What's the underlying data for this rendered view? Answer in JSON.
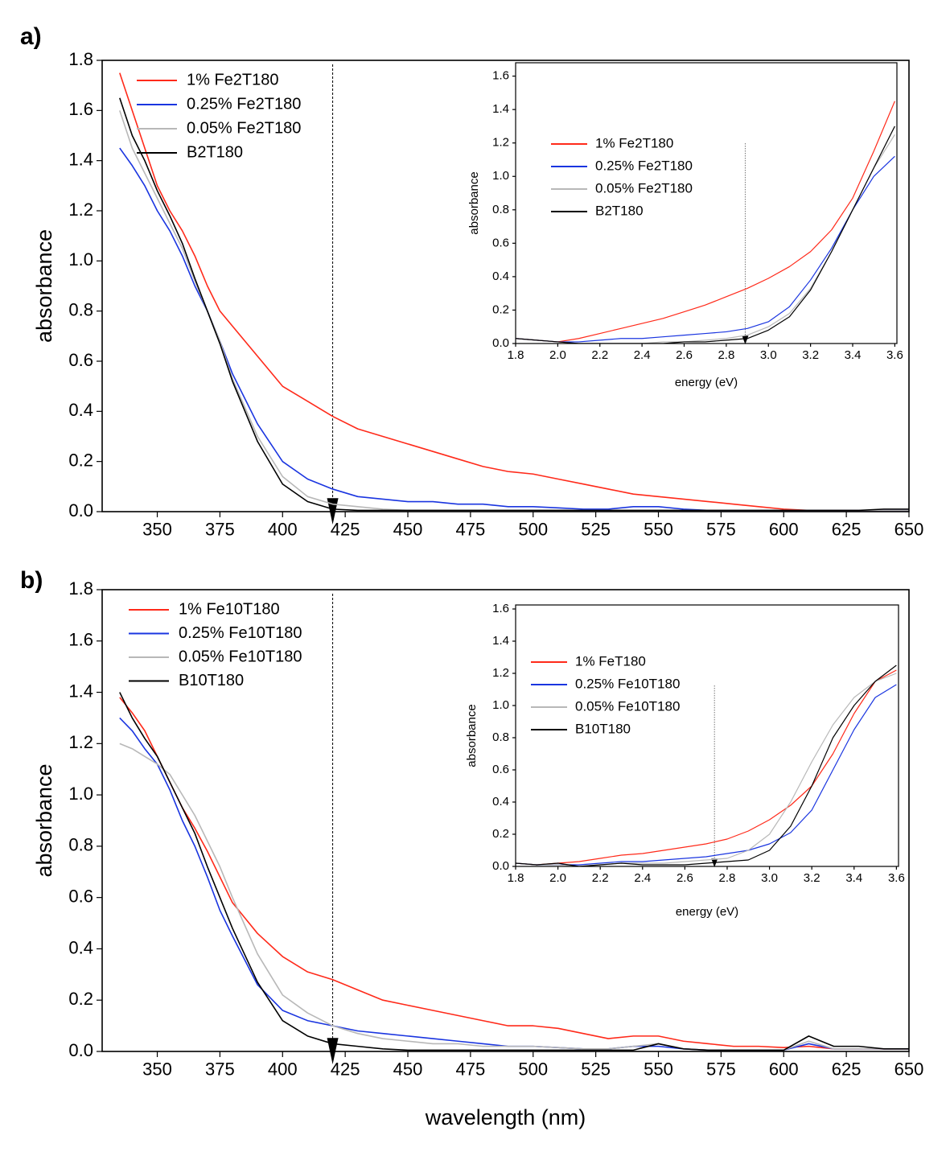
{
  "chart_data": [
    {
      "type": "line",
      "panel_label": "a)",
      "ylabel": "absorbance",
      "x": [
        335,
        340,
        345,
        350,
        355,
        360,
        365,
        370,
        375,
        380,
        390,
        400,
        410,
        420,
        430,
        440,
        450,
        460,
        470,
        480,
        490,
        500,
        510,
        520,
        530,
        540,
        550,
        560,
        570,
        580,
        590,
        600,
        610,
        620,
        630,
        640,
        650
      ],
      "series": [
        {
          "name": "1% Fe2T180",
          "color": "#ff2a1a",
          "values": [
            1.75,
            1.6,
            1.45,
            1.3,
            1.2,
            1.12,
            1.02,
            0.9,
            0.8,
            0.74,
            0.62,
            0.5,
            0.44,
            0.38,
            0.33,
            0.3,
            0.27,
            0.24,
            0.21,
            0.18,
            0.16,
            0.15,
            0.13,
            0.11,
            0.09,
            0.07,
            0.06,
            0.05,
            0.04,
            0.03,
            0.02,
            0.01,
            0.005,
            0.005,
            0.005,
            0.005,
            0.005
          ]
        },
        {
          "name": "0.25% Fe2T180",
          "color": "#1a35e0",
          "values": [
            1.45,
            1.38,
            1.3,
            1.2,
            1.12,
            1.02,
            0.9,
            0.8,
            0.68,
            0.55,
            0.35,
            0.2,
            0.13,
            0.09,
            0.06,
            0.05,
            0.04,
            0.04,
            0.03,
            0.03,
            0.02,
            0.02,
            0.015,
            0.01,
            0.01,
            0.02,
            0.02,
            0.01,
            0.005,
            0.005,
            0.005,
            0.005,
            0.005,
            0.005,
            0.005,
            0.005,
            0.005
          ]
        },
        {
          "name": "0.05% Fe2T180",
          "color": "#b8b8b8",
          "values": [
            1.6,
            1.45,
            1.35,
            1.25,
            1.15,
            1.05,
            0.92,
            0.8,
            0.68,
            0.53,
            0.3,
            0.14,
            0.06,
            0.03,
            0.02,
            0.01,
            0.005,
            0.005,
            0.005,
            0.005,
            0.005,
            0.005,
            0.005,
            0.005,
            0.005,
            0.005,
            0.005,
            0.005,
            0.005,
            0.005,
            0.005,
            0.005,
            0.005,
            0.005,
            0.005,
            0.005,
            0.005
          ]
        },
        {
          "name": "B2T180",
          "color": "#000000",
          "values": [
            1.65,
            1.5,
            1.4,
            1.28,
            1.18,
            1.07,
            0.93,
            0.8,
            0.67,
            0.52,
            0.28,
            0.11,
            0.04,
            0.01,
            0.005,
            0.005,
            0.005,
            0.005,
            0.005,
            0.005,
            0.005,
            0.005,
            0.005,
            0.005,
            0.005,
            0.005,
            0.005,
            0.005,
            0.005,
            0.005,
            0.005,
            0.005,
            0.005,
            0.005,
            0.005,
            0.01,
            0.01
          ]
        }
      ],
      "xlim": [
        328,
        650
      ],
      "ylim": [
        0,
        1.8
      ],
      "xticks": [
        350,
        375,
        400,
        425,
        450,
        475,
        500,
        525,
        550,
        575,
        600,
        625,
        650
      ],
      "yticks": [
        {
          "value": 0,
          "label": "0.0"
        },
        0.2,
        0.4,
        0.6,
        0.8,
        {
          "value": 1,
          "label": "1.0"
        },
        1.2,
        1.4,
        1.6,
        1.8
      ],
      "vline": 420,
      "legend": "upper left"
    },
    {
      "type": "line",
      "xlabel": "energy (eV)",
      "ylabel": "absorbance",
      "x": [
        1.8,
        1.9,
        2.0,
        2.1,
        2.2,
        2.3,
        2.4,
        2.5,
        2.6,
        2.7,
        2.8,
        2.9,
        3.0,
        3.1,
        3.2,
        3.3,
        3.4,
        3.5,
        3.6
      ],
      "series": [
        {
          "name": "1% Fe2T180",
          "color": "#ff2a1a",
          "values": [
            0.03,
            0.02,
            0.01,
            0.03,
            0.06,
            0.09,
            0.12,
            0.15,
            0.19,
            0.23,
            0.28,
            0.33,
            0.39,
            0.46,
            0.55,
            0.68,
            0.87,
            1.15,
            1.45
          ]
        },
        {
          "name": "0.25% Fe2T180",
          "color": "#1a35e0",
          "values": [
            0.03,
            0.02,
            0.01,
            0.01,
            0.02,
            0.03,
            0.03,
            0.04,
            0.05,
            0.06,
            0.07,
            0.09,
            0.13,
            0.22,
            0.38,
            0.57,
            0.8,
            1.0,
            1.12
          ]
        },
        {
          "name": "0.05% Fe2T180",
          "color": "#b8b8b8",
          "values": [
            0.03,
            0.02,
            0.01,
            0,
            0,
            0,
            0,
            0.01,
            0.01,
            0.02,
            0.03,
            0.05,
            0.1,
            0.18,
            0.33,
            0.55,
            0.8,
            1.05,
            1.25
          ]
        },
        {
          "name": " B2T180",
          "color": "#000000",
          "values": [
            0.03,
            0.02,
            0.01,
            0,
            0,
            0,
            0,
            0,
            0.01,
            0.01,
            0.02,
            0.03,
            0.08,
            0.16,
            0.32,
            0.55,
            0.8,
            1.05,
            1.3
          ]
        }
      ],
      "xlim": [
        1.8,
        3.61
      ],
      "ylim": [
        0,
        1.68
      ],
      "xticks": [
        1.8,
        {
          "value": 2,
          "label": "2.0"
        },
        2.2,
        2.4,
        2.6,
        2.8,
        {
          "value": 3,
          "label": "3.0"
        },
        3.2,
        3.4,
        3.6
      ],
      "yticks": [
        {
          "value": 0,
          "label": "0.0"
        },
        0.2,
        0.4,
        0.6,
        0.8,
        {
          "value": 1,
          "label": "1.0"
        },
        1.2,
        1.4,
        1.6
      ],
      "vline": 2.89,
      "legend": "center left"
    },
    {
      "type": "line",
      "panel_label": "b)",
      "xlabel": "wavelength (nm)",
      "ylabel": "absorbance",
      "x": [
        335,
        340,
        345,
        350,
        355,
        360,
        365,
        370,
        375,
        380,
        390,
        400,
        410,
        420,
        430,
        440,
        450,
        460,
        470,
        480,
        490,
        500,
        510,
        520,
        530,
        540,
        550,
        560,
        570,
        580,
        590,
        600,
        610,
        620,
        630,
        640,
        650
      ],
      "series": [
        {
          "name": "1% Fe10T180",
          "color": "#ff2a1a",
          "values": [
            1.38,
            1.32,
            1.25,
            1.15,
            1.05,
            0.95,
            0.87,
            0.78,
            0.68,
            0.58,
            0.46,
            0.37,
            0.31,
            0.28,
            0.24,
            0.2,
            0.18,
            0.16,
            0.14,
            0.12,
            0.1,
            0.1,
            0.09,
            0.07,
            0.05,
            0.06,
            0.06,
            0.04,
            0.03,
            0.02,
            0.02,
            0.015,
            0.02,
            0.01,
            0.01,
            0.01,
            0.01
          ]
        },
        {
          "name": "0.25% Fe10T180",
          "color": "#1a35e0",
          "values": [
            1.3,
            1.25,
            1.18,
            1.12,
            1.02,
            0.9,
            0.8,
            0.68,
            0.55,
            0.45,
            0.26,
            0.16,
            0.12,
            0.1,
            0.08,
            0.07,
            0.06,
            0.05,
            0.04,
            0.03,
            0.02,
            0.02,
            0.015,
            0.01,
            0.01,
            0.02,
            0.02,
            0.01,
            0.005,
            0.005,
            0.005,
            0.005,
            0.03,
            0.01,
            0.01,
            0.01,
            0.01
          ]
        },
        {
          "name": "0.05% Fe10T180",
          "color": "#b8b8b8",
          "values": [
            1.2,
            1.18,
            1.15,
            1.12,
            1.08,
            1.0,
            0.92,
            0.82,
            0.72,
            0.6,
            0.38,
            0.22,
            0.15,
            0.1,
            0.07,
            0.05,
            0.04,
            0.03,
            0.03,
            0.02,
            0.02,
            0.02,
            0.015,
            0.01,
            0.01,
            0.02,
            0.03,
            0.01,
            0.005,
            0.005,
            0.005,
            0.005,
            0.04,
            0.01,
            0.01,
            0.01,
            0.01
          ]
        },
        {
          "name": "B10T180",
          "color": "#000000",
          "values": [
            1.4,
            1.3,
            1.22,
            1.15,
            1.05,
            0.95,
            0.85,
            0.72,
            0.6,
            0.48,
            0.27,
            0.12,
            0.06,
            0.03,
            0.02,
            0.01,
            0.005,
            0.005,
            0.005,
            0.005,
            0.005,
            0.005,
            0.005,
            0.005,
            0.005,
            0.005,
            0.03,
            0.01,
            0.005,
            0.005,
            0.005,
            0.005,
            0.06,
            0.02,
            0.02,
            0.01,
            0.01
          ]
        }
      ],
      "xlim": [
        328,
        650
      ],
      "ylim": [
        0,
        1.8
      ],
      "xticks": [
        350,
        375,
        400,
        425,
        450,
        475,
        500,
        525,
        550,
        575,
        600,
        625,
        650
      ],
      "yticks": [
        {
          "value": 0,
          "label": "0.0"
        },
        0.2,
        0.4,
        0.6,
        0.8,
        {
          "value": 1,
          "label": "1.0"
        },
        1.2,
        1.4,
        1.6,
        1.8
      ],
      "vline": 420,
      "legend": "upper left"
    },
    {
      "type": "line",
      "xlabel": "energy (eV)",
      "ylabel": "absorbance",
      "x": [
        1.8,
        1.9,
        2.0,
        2.1,
        2.2,
        2.3,
        2.4,
        2.5,
        2.6,
        2.7,
        2.8,
        2.9,
        3.0,
        3.1,
        3.2,
        3.3,
        3.4,
        3.5,
        3.6
      ],
      "series": [
        {
          "name": "1% FeT180",
          "color": "#ff2a1a",
          "values": [
            0.02,
            0.01,
            0.02,
            0.03,
            0.05,
            0.07,
            0.08,
            0.1,
            0.12,
            0.14,
            0.17,
            0.22,
            0.29,
            0.38,
            0.5,
            0.7,
            0.95,
            1.15,
            1.22
          ]
        },
        {
          "name": "0.25% Fe10T180",
          "color": "#1a35e0",
          "values": [
            0.02,
            0.01,
            0.01,
            0.01,
            0.02,
            0.03,
            0.03,
            0.04,
            0.05,
            0.06,
            0.08,
            0.1,
            0.14,
            0.21,
            0.35,
            0.6,
            0.85,
            1.05,
            1.13
          ]
        },
        {
          "name": "0.05% Fe10T180",
          "color": "#b8b8b8",
          "values": [
            0.02,
            0.01,
            0.01,
            0,
            0.01,
            0.02,
            0.02,
            0.02,
            0.03,
            0.04,
            0.05,
            0.1,
            0.2,
            0.4,
            0.65,
            0.88,
            1.05,
            1.15,
            1.2
          ]
        },
        {
          "name": "B10T180",
          "color": "#000000",
          "values": [
            0.02,
            0.01,
            0.02,
            0,
            0.01,
            0.02,
            0.01,
            0.01,
            0.01,
            0.02,
            0.03,
            0.04,
            0.1,
            0.25,
            0.5,
            0.8,
            1.0,
            1.15,
            1.25
          ]
        }
      ],
      "xlim": [
        1.8,
        3.61
      ],
      "ylim": [
        0,
        1.625
      ],
      "xticks": [
        1.8,
        {
          "value": 2,
          "label": "2.0"
        },
        2.2,
        2.4,
        2.6,
        2.8,
        {
          "value": 3,
          "label": "3.0"
        },
        3.2,
        3.4,
        3.6
      ],
      "yticks": [
        {
          "value": 0,
          "label": "0.0"
        },
        0.2,
        0.4,
        0.6,
        0.8,
        {
          "value": 1,
          "label": "1.0"
        },
        1.2,
        1.4,
        1.6
      ],
      "vline": 2.74,
      "legend": "center left"
    }
  ]
}
